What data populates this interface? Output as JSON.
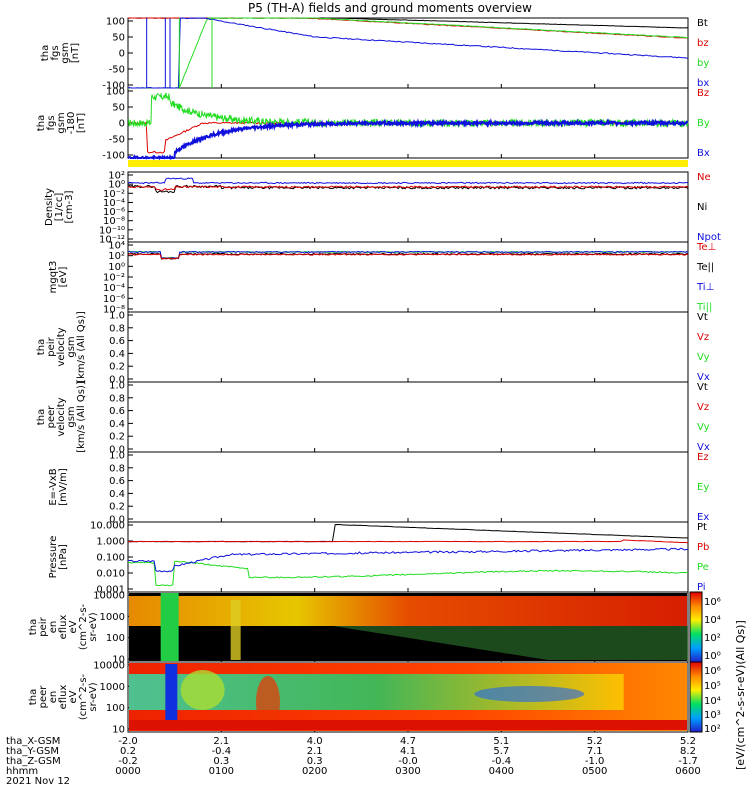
{
  "title": "P5 (TH-A) fields and ground moments overview",
  "colors": {
    "black": "#000000",
    "red": "#dd0000",
    "green": "#22dd22",
    "blue": "#1010dd",
    "yellow": "#ffee00"
  },
  "panels": [
    {
      "id": "fgs-gsm",
      "ylabel": [
        "tha",
        "fgs",
        "gsm",
        "[nT]"
      ],
      "ticks": [
        "100",
        "50",
        "0",
        "-50",
        "-100"
      ],
      "legend": [
        [
          "Bt",
          "black"
        ],
        [
          "bz",
          "red"
        ],
        [
          "by",
          "green"
        ],
        [
          "bx",
          "blue"
        ]
      ]
    },
    {
      "id": "fgs-gsm-tail",
      "ylabel": [
        "tha",
        "fgs",
        "gsm",
        "-180",
        "[nT]"
      ],
      "ticks": [
        "100",
        "50",
        "0",
        "-50",
        "-100"
      ],
      "legend": [
        [
          "Bz",
          "red"
        ],
        [
          "By",
          "green"
        ],
        [
          "Bx",
          "blue"
        ]
      ]
    },
    {
      "id": "density",
      "ylabel": [
        "Density",
        "[1/cc]",
        "[cm-3]"
      ],
      "ticks": [
        "10²",
        "10⁰",
        "10⁻²",
        "10⁻⁴",
        "10⁻⁶",
        "10⁻⁸",
        "10⁻¹⁰",
        "10⁻¹²"
      ],
      "legend": [
        [
          "Ne",
          "red"
        ],
        [
          "Ni",
          "black"
        ],
        [
          "Npot",
          "blue"
        ]
      ]
    },
    {
      "id": "temperature",
      "ylabel": [
        "mgqt3",
        "[eV]"
      ],
      "ticks": [
        "10⁴",
        "10²",
        "10⁰",
        "10⁻²",
        "10⁻⁴",
        "10⁻⁶",
        "10⁻⁸"
      ],
      "legend": [
        [
          "Te⊥",
          "red"
        ],
        [
          "Te||",
          "black"
        ],
        [
          "Ti⊥",
          "blue"
        ],
        [
          "Ti||",
          "green"
        ]
      ]
    },
    {
      "id": "peir-velocity",
      "ylabel": [
        "tha",
        "peir",
        "velocity",
        "gsm",
        "[km/s (All Qs)]"
      ],
      "ticks": [
        "1.0",
        "0.8",
        "0.6",
        "0.4",
        "0.2",
        "0.0"
      ],
      "legend": [
        [
          "Vt",
          "black"
        ],
        [
          "Vz",
          "red"
        ],
        [
          "Vy",
          "green"
        ],
        [
          "Vx",
          "blue"
        ]
      ]
    },
    {
      "id": "peer-velocity",
      "ylabel": [
        "tha",
        "peer",
        "velocity",
        "gsm",
        "[km/s (All Qs)]"
      ],
      "ticks": [
        "1.0",
        "0.8",
        "0.6",
        "0.4",
        "0.2",
        "0.0"
      ],
      "legend": [
        [
          "Vt",
          "black"
        ],
        [
          "Vz",
          "red"
        ],
        [
          "Vy",
          "green"
        ],
        [
          "Vx",
          "blue"
        ]
      ]
    },
    {
      "id": "efield",
      "ylabel": [
        "E=-VxB",
        "[mV/m]"
      ],
      "ticks": [
        "1.0",
        "0.8",
        "0.6",
        "0.4",
        "0.2",
        "0.0"
      ],
      "legend": [
        [
          "Ez",
          "red"
        ],
        [
          "Ey",
          "green"
        ],
        [
          "Ex",
          "blue"
        ]
      ]
    },
    {
      "id": "pressure",
      "ylabel": [
        "Pressure",
        "[nPa]"
      ],
      "ticks": [
        "10.000",
        "1.000",
        "0.100",
        "0.010",
        "0.001"
      ],
      "legend": [
        [
          "Pt",
          "black"
        ],
        [
          "Pb",
          "red"
        ],
        [
          "Pe",
          "green"
        ],
        [
          "Pi",
          "blue"
        ]
      ]
    },
    {
      "id": "peir-eflux",
      "ylabel": [
        "tha",
        "peir",
        "en",
        "eflux",
        "eV",
        "(cm^2-s-",
        "sr-eV)"
      ],
      "ticks": [
        "10000",
        "1000",
        "100",
        "10"
      ]
    },
    {
      "id": "peer-eflux",
      "ylabel": [
        "tha",
        "peer",
        "en",
        "eflux",
        "eV",
        "(cm^2-s-",
        "sr-eV)"
      ],
      "ticks": [
        "10000",
        "1000",
        "100",
        "10"
      ]
    }
  ],
  "colorbar": {
    "label": "[eV/(cm^2-s-sr-eV)(All Qs)]",
    "ticks_top": [
      "10⁶",
      "10⁴",
      "10²",
      "10⁰"
    ],
    "ticks_bottom": [
      "10⁶",
      "10⁵",
      "10⁴",
      "10³",
      "10²"
    ]
  },
  "xaxis": {
    "rows": [
      {
        "label": "tha_X-GSM",
        "values": [
          "-2.0",
          "2.1",
          "4.0",
          "4.7",
          "5.1",
          "5.2",
          "5.2"
        ]
      },
      {
        "label": "tha_Y-GSM",
        "values": [
          "0.2",
          "-0.4",
          "2.1",
          "4.1",
          "5.7",
          "7.1",
          "8.2"
        ]
      },
      {
        "label": "tha_Z-GSM",
        "values": [
          "-0.2",
          "0.3",
          "0.3",
          "-0.0",
          "-0.4",
          "-1.0",
          "-1.7"
        ]
      },
      {
        "label": "hhmm",
        "values": [
          "0000",
          "0100",
          "0200",
          "0300",
          "0400",
          "0500",
          "0600"
        ]
      }
    ],
    "date": "2021 Nov 12"
  },
  "chart_data": {
    "type": "line",
    "x": [
      "0000",
      "0100",
      "0200",
      "0300",
      "0400",
      "0500",
      "0600"
    ],
    "series": [
      {
        "name": "Bt",
        "panel": "fgs-gsm",
        "color": "black",
        "values": [
          100,
          100,
          100,
          100,
          92,
          80,
          72
        ]
      },
      {
        "name": "bz",
        "panel": "fgs-gsm",
        "color": "red",
        "values": [
          100,
          100,
          100,
          80,
          62,
          50,
          42
        ]
      },
      {
        "name": "by",
        "panel": "fgs-gsm",
        "color": "green",
        "values": [
          -100,
          100,
          100,
          80,
          65,
          55,
          45
        ]
      },
      {
        "name": "bx",
        "panel": "fgs-gsm",
        "color": "blue",
        "values": [
          -100,
          -100,
          80,
          40,
          20,
          10,
          0
        ]
      },
      {
        "name": "Bz",
        "panel": "fgs-gsm-tail",
        "color": "red",
        "values": [
          0,
          15,
          5,
          0,
          -3,
          -5,
          -5
        ]
      },
      {
        "name": "By",
        "panel": "fgs-gsm-tail",
        "color": "green",
        "values": [
          100,
          60,
          10,
          2,
          0,
          -2,
          -5
        ]
      },
      {
        "name": "Bx",
        "panel": "fgs-gsm-tail",
        "color": "blue",
        "values": [
          -100,
          -40,
          -5,
          0,
          0,
          -2,
          -5
        ]
      },
      {
        "name": "Pt",
        "panel": "pressure",
        "color": "black",
        "values": [
          null,
          null,
          null,
          10,
          5,
          3,
          2
        ]
      },
      {
        "name": "Pb",
        "panel": "pressure",
        "color": "red",
        "values": [
          null,
          null,
          null,
          10,
          5,
          3,
          2
        ]
      },
      {
        "name": "Pe",
        "panel": "pressure",
        "color": "green",
        "values": [
          0.05,
          0.08,
          0.03,
          0.01,
          0.01,
          0.015,
          0.05
        ]
      },
      {
        "name": "Pi",
        "panel": "pressure",
        "color": "blue",
        "values": [
          0.05,
          0.1,
          0.12,
          0.1,
          0.25,
          0.3,
          0.4
        ]
      }
    ]
  }
}
